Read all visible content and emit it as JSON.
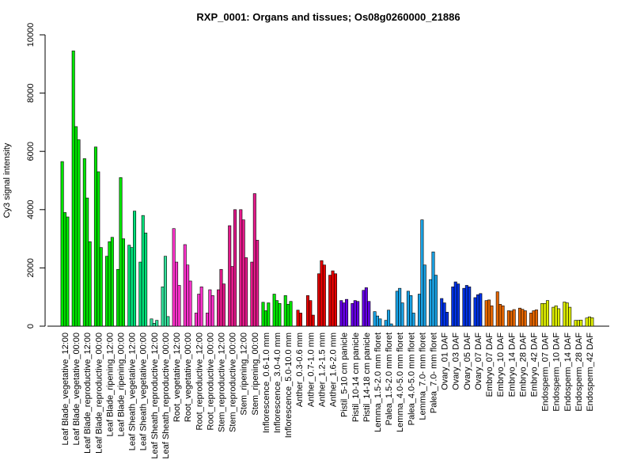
{
  "chart_data": {
    "type": "bar",
    "title": "RXP_0001: Organs and tissues; Os08g0260000_21886",
    "xlabel": "",
    "ylabel": "Cy3 signal intensity",
    "ylim": [
      0,
      10000
    ],
    "yticks": [
      0,
      2000,
      4000,
      6000,
      8000,
      10000
    ],
    "grid": false,
    "legend": "none",
    "groups": [
      {
        "label": "Leaf Blade_vegetative_12:00",
        "color": "#00e600",
        "values": [
          5650,
          3900,
          3750
        ]
      },
      {
        "label": "Leaf Blade_vegetative_00:00",
        "color": "#00e600",
        "values": [
          9450,
          6850,
          6400
        ]
      },
      {
        "label": "Leaf Blade_reproductive_12:00",
        "color": "#00e600",
        "values": [
          5750,
          4400,
          2900
        ]
      },
      {
        "label": "Leaf Blade_reproductive_00:00",
        "color": "#00e600",
        "values": [
          6150,
          5300,
          2700
        ]
      },
      {
        "label": "Leaf Blade_ripening_12:00",
        "color": "#00e600",
        "values": [
          2400,
          2900,
          3050
        ]
      },
      {
        "label": "Leaf Blade_ripening_00:00",
        "color": "#00e600",
        "values": [
          1950,
          5100,
          3000
        ]
      },
      {
        "label": "Leaf Sheath_vegetative_12:00",
        "color": "#00e079",
        "values": [
          2780,
          2700,
          3950
        ]
      },
      {
        "label": "Leaf Sheath_vegetative_00:00",
        "color": "#00e079",
        "values": [
          2200,
          3800,
          3200
        ]
      },
      {
        "label": "Leaf Sheath_reproductive_12:00",
        "color": "#33dd99",
        "values": [
          250,
          100,
          200
        ]
      },
      {
        "label": "Leaf Sheath_reproductive_00:00",
        "color": "#33dd99",
        "values": [
          1350,
          2400,
          330
        ]
      },
      {
        "label": "Root_vegetative_12:00",
        "color": "#ff33cc",
        "values": [
          3350,
          2200,
          1400
        ]
      },
      {
        "label": "Root_vegetative_00:00",
        "color": "#ff33cc",
        "values": [
          2800,
          2100,
          1550
        ]
      },
      {
        "label": "Root_reproductive_12:00",
        "color": "#ff33cc",
        "values": [
          450,
          1100,
          1350
        ]
      },
      {
        "label": "Root_reproductive_00:00",
        "color": "#ff33cc",
        "values": [
          450,
          1250,
          1050
        ]
      },
      {
        "label": "Stem_reproductive_12:00",
        "color": "#e61a8c",
        "values": [
          1250,
          1950,
          1450
        ]
      },
      {
        "label": "Stem_reproductive_00:00",
        "color": "#e61a8c",
        "values": [
          3450,
          2050,
          4000
        ]
      },
      {
        "label": "Stem_ripening_12:00",
        "color": "#e61a8c",
        "values": [
          4000,
          3650,
          2350
        ]
      },
      {
        "label": "Stem_ripening_00:00",
        "color": "#e61a8c",
        "values": [
          2200,
          4550,
          2950
        ]
      },
      {
        "label": "Inflorescence_0.6-1.0 mm",
        "color": "#00e600",
        "values": [
          820,
          530,
          800
        ]
      },
      {
        "label": "Inflorescence_3.0-4.0 mm",
        "color": "#00e600",
        "values": [
          1100,
          880,
          780
        ]
      },
      {
        "label": "Inflorescence_5.0-10.0 mm",
        "color": "#00e600",
        "values": [
          1050,
          750,
          850
        ]
      },
      {
        "label": "Anther_0.3-0.6 mm",
        "color": "#e60000",
        "values": [
          550,
          450
        ]
      },
      {
        "label": "Anther_0.7-1.0 mm",
        "color": "#e60000",
        "values": [
          1050,
          880,
          380
        ]
      },
      {
        "label": "Anther_1.2-1.5 mm",
        "color": "#e60000",
        "values": [
          1800,
          2250,
          2100
        ]
      },
      {
        "label": "Anther_1.6-2.0 mm",
        "color": "#e60000",
        "values": [
          1750,
          1900,
          1800
        ]
      },
      {
        "label": "Pistil_5-10 cm panicle",
        "color": "#6600e6",
        "values": [
          880,
          800,
          920
        ]
      },
      {
        "label": "Pistil_10-14 cm panicle",
        "color": "#6600e6",
        "values": [
          780,
          880,
          850
        ]
      },
      {
        "label": "Pistil_14-18 cm panicle",
        "color": "#6600e6",
        "values": [
          1230,
          1320,
          850
        ]
      },
      {
        "label": "Lemma_1.5-2.0 mm floret",
        "color": "#1aa3e6",
        "values": [
          500,
          350,
          250
        ]
      },
      {
        "label": "Palea_1.5-2.0 mm floret",
        "color": "#1aa3e6",
        "values": [
          200,
          550,
          80
        ]
      },
      {
        "label": "Lemma_4.0-5.0 mm floret",
        "color": "#1aa3e6",
        "values": [
          1200,
          1300,
          800
        ]
      },
      {
        "label": "Palea_4.0-5.0 mm floret",
        "color": "#1aa3e6",
        "values": [
          1200,
          1050,
          450
        ]
      },
      {
        "label": "Lemma_7.0- mm floret",
        "color": "#1aa3e6",
        "values": [
          1100,
          3650,
          2100
        ]
      },
      {
        "label": "Palea_7.0- mm floret",
        "color": "#1aa3e6",
        "values": [
          1600,
          2550,
          1750
        ]
      },
      {
        "label": "Ovary_01 DAF",
        "color": "#0033e6",
        "values": [
          950,
          800,
          480
        ]
      },
      {
        "label": "Ovary_03 DAF",
        "color": "#0033e6",
        "values": [
          1350,
          1520,
          1450
        ]
      },
      {
        "label": "Ovary_05 DAF",
        "color": "#0033e6",
        "values": [
          1300,
          1400,
          1350
        ]
      },
      {
        "label": "Ovary_07 DAF",
        "color": "#0033e6",
        "values": [
          980,
          1080,
          1120
        ]
      },
      {
        "label": "Embryo_07 DAF",
        "color": "#e66600",
        "values": [
          880,
          900,
          700
        ]
      },
      {
        "label": "Embryo_10 DAF",
        "color": "#e66600",
        "values": [
          1180,
          750,
          700
        ]
      },
      {
        "label": "Embryo_14 DAF",
        "color": "#e66600",
        "values": [
          530,
          520,
          570
        ]
      },
      {
        "label": "Embryo_28 DAF",
        "color": "#e66600",
        "values": [
          620,
          580,
          530
        ]
      },
      {
        "label": "Embryo_42 DAF",
        "color": "#e66600",
        "values": [
          450,
          530,
          560
        ]
      },
      {
        "label": "Endosperm_07 DAF",
        "color": "#dded00",
        "values": [
          780,
          780,
          880
        ]
      },
      {
        "label": "Endosperm_10 DAF",
        "color": "#dded00",
        "values": [
          650,
          700,
          600
        ]
      },
      {
        "label": "Endosperm_14 DAF",
        "color": "#dded00",
        "values": [
          830,
          800,
          650
        ]
      },
      {
        "label": "Endosperm_28 DAF",
        "color": "#dded00",
        "values": [
          200,
          200,
          210
        ]
      },
      {
        "label": "Endosperm_42 DAF",
        "color": "#dded00",
        "values": [
          280,
          320,
          290
        ]
      }
    ]
  }
}
